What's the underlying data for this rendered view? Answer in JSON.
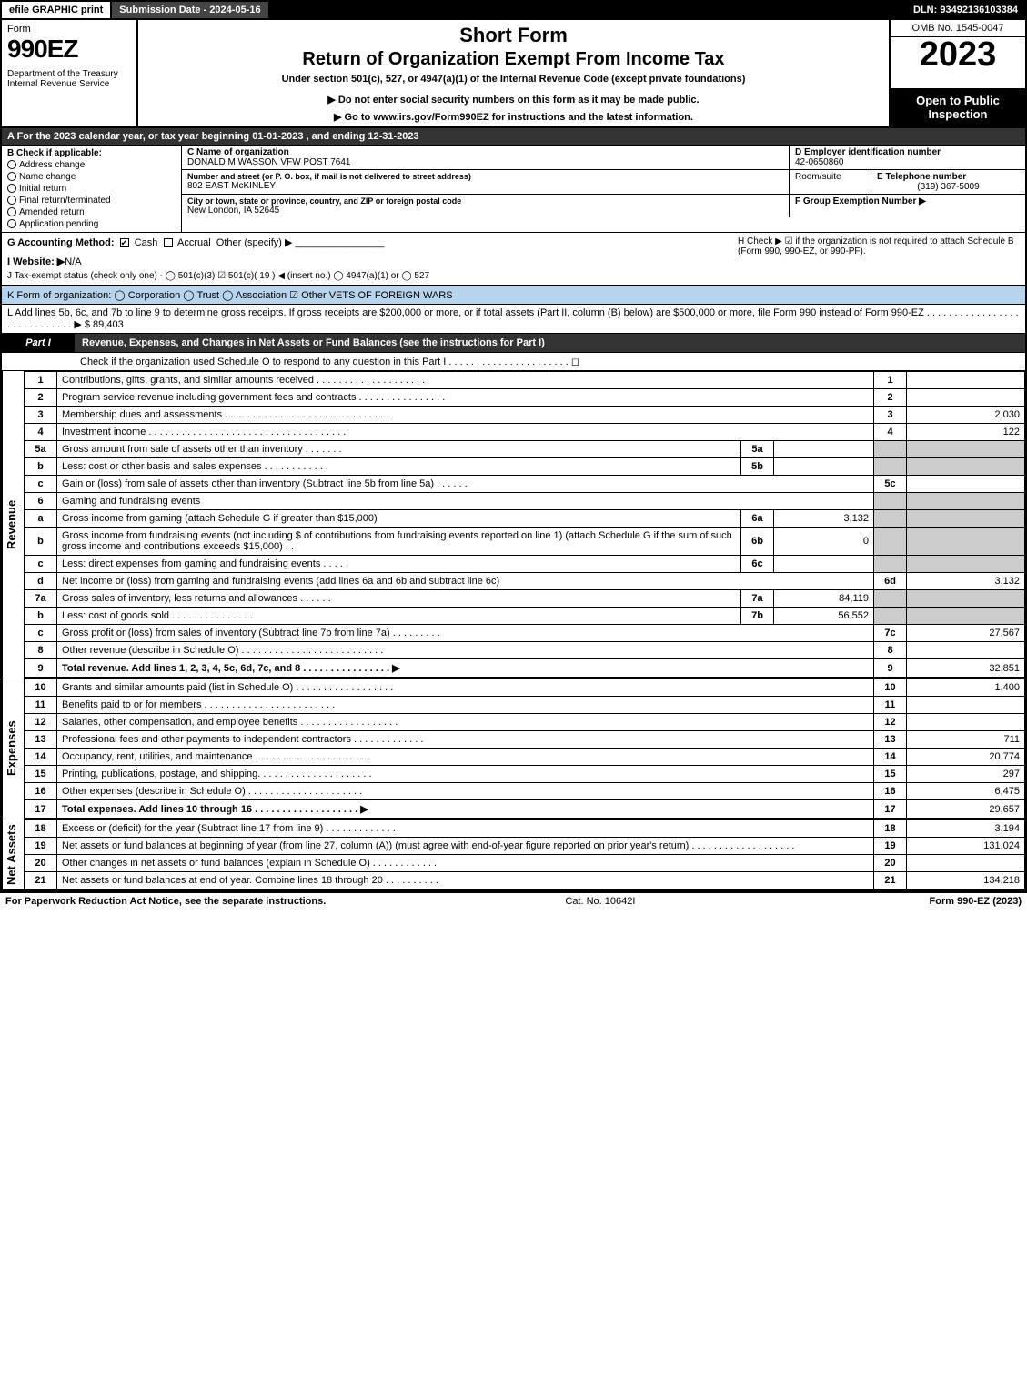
{
  "topbar": {
    "efile": "efile GRAPHIC print",
    "submission": "Submission Date - 2024-05-16",
    "dln": "DLN: 93492136103384"
  },
  "header": {
    "form": "Form",
    "formnum": "990EZ",
    "dept": "Department of the Treasury\nInternal Revenue Service",
    "title1": "Short Form",
    "title2": "Return of Organization Exempt From Income Tax",
    "title3": "Under section 501(c), 527, or 4947(a)(1) of the Internal Revenue Code (except private foundations)",
    "title4": "▶ Do not enter social security numbers on this form as it may be made public.",
    "title5": "▶ Go to www.irs.gov/Form990EZ for instructions and the latest information.",
    "omb": "OMB No. 1545-0047",
    "year": "2023",
    "inspection": "Open to Public Inspection"
  },
  "rowA": "A  For the 2023 calendar year, or tax year beginning 01-01-2023 , and ending 12-31-2023",
  "colB": {
    "label": "B  Check if applicable:",
    "items": [
      "Address change",
      "Name change",
      "Initial return",
      "Final return/terminated",
      "Amended return",
      "Application pending"
    ]
  },
  "colC": {
    "nameLbl": "C Name of organization",
    "name": "DONALD M WASSON VFW POST 7641",
    "streetLbl": "Number and street (or P. O. box, if mail is not delivered to street address)",
    "street": "802 EAST McKINLEY",
    "roomLbl": "Room/suite",
    "cityLbl": "City or town, state or province, country, and ZIP or foreign postal code",
    "city": "New London, IA  52645"
  },
  "colD": {
    "lbl": "D Employer identification number",
    "val": "42-0650860"
  },
  "colE": {
    "lbl": "E Telephone number",
    "val": "(319) 367-5009"
  },
  "colF": {
    "lbl": "F Group Exemption Number   ▶",
    "val": ""
  },
  "rowG": {
    "label": "G Accounting Method:",
    "cash": "Cash",
    "accrual": "Accrual",
    "other": "Other (specify) ▶"
  },
  "rowH": "H    Check ▶ ☑ if the organization is not required to attach Schedule B (Form 990, 990-EZ, or 990-PF).",
  "rowI": {
    "lbl": "I Website: ▶",
    "val": "N/A"
  },
  "rowJ": "J Tax-exempt status (check only one) - ◯ 501(c)(3) ☑ 501(c)( 19 ) ◀ (insert no.) ◯ 4947(a)(1) or ◯ 527",
  "rowK": "K Form of organization:   ◯ Corporation   ◯ Trust   ◯ Association   ☑ Other VETS OF FOREIGN WARS",
  "rowL": "L Add lines 5b, 6c, and 7b to line 9 to determine gross receipts. If gross receipts are $200,000 or more, or if total assets (Part II, column (B) below) are $500,000 or more, file Form 990 instead of Form 990-EZ  .  .  .  .  .  .  .  .  .  .  .  .  .  .  .  .  .  .  .  .  .  .  .  .  .  .  .  .  .  ▶ $ 89,403",
  "part1": {
    "tag": "Part I",
    "title": "Revenue, Expenses, and Changes in Net Assets or Fund Balances (see the instructions for Part I)",
    "sub": "Check if the organization used Schedule O to respond to any question in this Part I  .  .  .  .  .  .  .  .  .  .  .  .  .  .  .  .  .  .  .  .  .  .  ◻"
  },
  "revenue": {
    "label": "Revenue",
    "rows": [
      {
        "n": "1",
        "d": "Contributions, gifts, grants, and similar amounts received  .  .  .  .  .  .  .  .  .  .  .  .  .  .  .  .  .  .  .  .",
        "b": "1",
        "a": ""
      },
      {
        "n": "2",
        "d": "Program service revenue including government fees and contracts  .  .  .  .  .  .  .  .  .  .  .  .  .  .  .  .",
        "b": "2",
        "a": ""
      },
      {
        "n": "3",
        "d": "Membership dues and assessments  .  .  .  .  .  .  .  .  .  .  .  .  .  .  .  .  .  .  .  .  .  .  .  .  .  .  .  .  .  .",
        "b": "3",
        "a": "2,030"
      },
      {
        "n": "4",
        "d": "Investment income  .  .  .  .  .  .  .  .  .  .  .  .  .  .  .  .  .  .  .  .  .  .  .  .  .  .  .  .  .  .  .  .  .  .  .  .",
        "b": "4",
        "a": "122"
      },
      {
        "n": "5a",
        "d": "Gross amount from sale of assets other than inventory  .  .  .  .  .  .  .",
        "sub": "5a",
        "suba": "",
        "grey": true
      },
      {
        "n": "b",
        "d": "Less: cost or other basis and sales expenses  .  .  .  .  .  .  .  .  .  .  .  .",
        "sub": "5b",
        "suba": "",
        "grey": true
      },
      {
        "n": "c",
        "d": "Gain or (loss) from sale of assets other than inventory (Subtract line 5b from line 5a)  .  .  .  .  .  .",
        "b": "5c",
        "a": ""
      },
      {
        "n": "6",
        "d": "Gaming and fundraising events",
        "grey": true,
        "noinner": true
      },
      {
        "n": "a",
        "d": "Gross income from gaming (attach Schedule G if greater than $15,000)",
        "sub": "6a",
        "suba": "3,132",
        "grey": true
      },
      {
        "n": "b",
        "d": "Gross income from fundraising events (not including $                    of contributions from fundraising events reported on line 1) (attach Schedule G if the sum of such gross income and contributions exceeds $15,000)    .   .",
        "sub": "6b",
        "suba": "0",
        "grey": true
      },
      {
        "n": "c",
        "d": "Less: direct expenses from gaming and fundraising events   .  .  .  .  .",
        "sub": "6c",
        "suba": "",
        "grey": true
      },
      {
        "n": "d",
        "d": "Net income or (loss) from gaming and fundraising events (add lines 6a and 6b and subtract line 6c)",
        "b": "6d",
        "a": "3,132"
      },
      {
        "n": "7a",
        "d": "Gross sales of inventory, less returns and allowances  .  .  .  .  .  .",
        "sub": "7a",
        "suba": "84,119",
        "grey": true
      },
      {
        "n": "b",
        "d": "Less: cost of goods sold       .   .   .   .   .   .   .   .   .   .   .   .   .   .   .",
        "sub": "7b",
        "suba": "56,552",
        "grey": true
      },
      {
        "n": "c",
        "d": "Gross profit or (loss) from sales of inventory (Subtract line 7b from line 7a)  .  .  .  .  .  .  .  .  .",
        "b": "7c",
        "a": "27,567"
      },
      {
        "n": "8",
        "d": "Other revenue (describe in Schedule O)  .  .  .  .  .  .  .  .  .  .  .  .  .  .  .  .  .  .  .  .  .  .  .  .  .  .",
        "b": "8",
        "a": ""
      },
      {
        "n": "9",
        "d": "Total revenue. Add lines 1, 2, 3, 4, 5c, 6d, 7c, and 8   .   .   .   .   .   .   .   .   .   .   .   .   .   .   .   .   ▶",
        "b": "9",
        "a": "32,851",
        "bold": true
      }
    ]
  },
  "expenses": {
    "label": "Expenses",
    "rows": [
      {
        "n": "10",
        "d": "Grants and similar amounts paid (list in Schedule O)  .   .   .   .   .   .   .   .   .   .   .   .   .   .   .   .   .   .",
        "b": "10",
        "a": "1,400"
      },
      {
        "n": "11",
        "d": "Benefits paid to or for members     .   .   .   .   .   .   .   .   .   .   .   .   .   .   .   .   .   .   .   .   .   .   .   .",
        "b": "11",
        "a": ""
      },
      {
        "n": "12",
        "d": "Salaries, other compensation, and employee benefits .   .   .   .   .   .   .   .   .   .   .   .   .   .   .   .   .   .",
        "b": "12",
        "a": ""
      },
      {
        "n": "13",
        "d": "Professional fees and other payments to independent contractors  .   .   .   .   .   .   .   .   .   .   .   .   .",
        "b": "13",
        "a": "711"
      },
      {
        "n": "14",
        "d": "Occupancy, rent, utilities, and maintenance .   .   .   .   .   .   .   .   .   .   .   .   .   .   .   .   .   .   .   .   .",
        "b": "14",
        "a": "20,774"
      },
      {
        "n": "15",
        "d": "Printing, publications, postage, and shipping.   .   .   .   .   .   .   .   .   .   .   .   .   .   .   .   .   .   .   .   .",
        "b": "15",
        "a": "297"
      },
      {
        "n": "16",
        "d": "Other expenses (describe in Schedule O)    .   .   .   .   .   .   .   .   .   .   .   .   .   .   .   .   .   .   .   .   .",
        "b": "16",
        "a": "6,475"
      },
      {
        "n": "17",
        "d": "Total expenses. Add lines 10 through 16     .   .   .   .   .   .   .   .   .   .   .   .   .   .   .   .   .   .   .   ▶",
        "b": "17",
        "a": "29,657",
        "bold": true
      }
    ]
  },
  "netassets": {
    "label": "Net Assets",
    "rows": [
      {
        "n": "18",
        "d": "Excess or (deficit) for the year (Subtract line 17 from line 9)      .   .   .   .   .   .   .   .   .   .   .   .   .",
        "b": "18",
        "a": "3,194"
      },
      {
        "n": "19",
        "d": "Net assets or fund balances at beginning of year (from line 27, column (A)) (must agree with end-of-year figure reported on prior year's return) .   .   .   .   .   .   .   .   .   .   .   .   .   .   .   .   .   .   .",
        "b": "19",
        "a": "131,024"
      },
      {
        "n": "20",
        "d": "Other changes in net assets or fund balances (explain in Schedule O) .   .   .   .   .   .   .   .   .   .   .   .",
        "b": "20",
        "a": ""
      },
      {
        "n": "21",
        "d": "Net assets or fund balances at end of year. Combine lines 18 through 20  .   .   .   .   .   .   .   .   .   .",
        "b": "21",
        "a": "134,218"
      }
    ]
  },
  "footer": {
    "left": "For Paperwork Reduction Act Notice, see the separate instructions.",
    "mid": "Cat. No. 10642I",
    "right": "Form 990-EZ (2023)"
  }
}
